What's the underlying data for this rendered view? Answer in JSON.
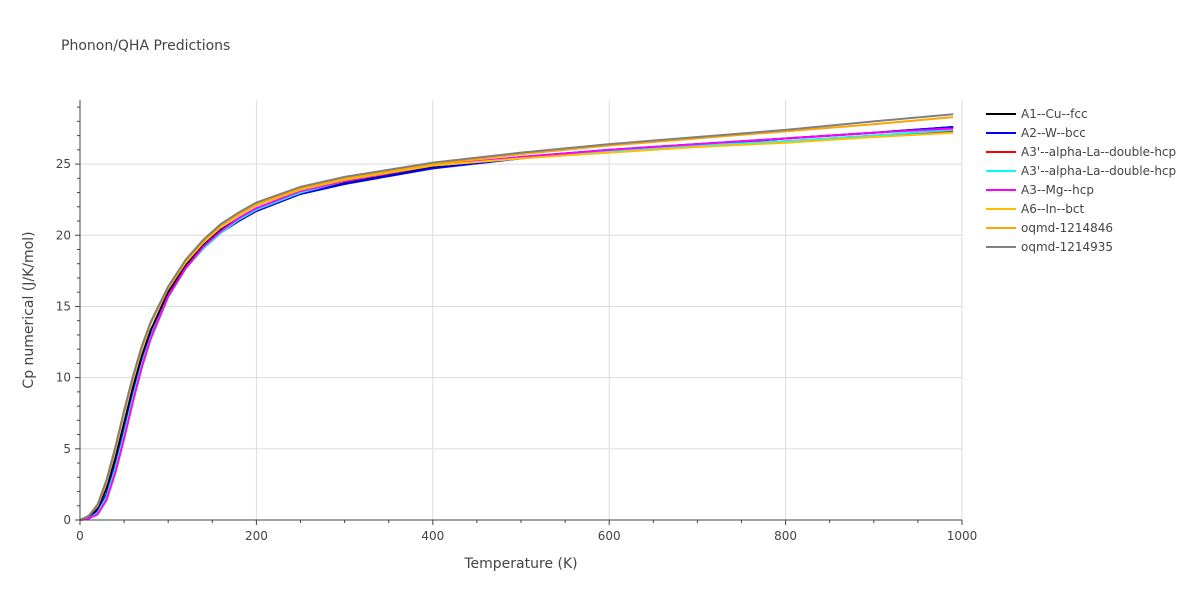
{
  "chart_data": {
    "type": "line",
    "title": "Phonon/QHA Predictions",
    "xlabel": "Temperature (K)",
    "ylabel": "Cp numerical (J/K/mol)",
    "xlim": [
      0,
      1000
    ],
    "ylim": [
      0,
      29.5
    ],
    "x_ticks": [
      0,
      200,
      400,
      600,
      800,
      1000
    ],
    "y_ticks": [
      0,
      5,
      10,
      15,
      20,
      25
    ],
    "grid": true,
    "legend_placement": "right",
    "series": [
      {
        "name": "A1--Cu--fcc",
        "color": "#000000",
        "x": [
          0,
          10,
          20,
          30,
          40,
          50,
          60,
          70,
          80,
          100,
          120,
          140,
          160,
          180,
          200,
          250,
          300,
          400,
          500,
          600,
          700,
          800,
          900,
          990
        ],
        "y": [
          0,
          0.2,
          0.8,
          2.2,
          4.3,
          6.8,
          9.3,
          11.5,
          13.3,
          16.0,
          17.9,
          19.3,
          20.4,
          21.2,
          21.9,
          23.0,
          23.7,
          24.8,
          25.5,
          26.0,
          26.4,
          26.8,
          27.2,
          27.6
        ]
      },
      {
        "name": "A2--W--bcc",
        "color": "#0000ff",
        "x": [
          0,
          10,
          20,
          30,
          40,
          50,
          60,
          70,
          80,
          100,
          120,
          140,
          160,
          180,
          200,
          250,
          300,
          400,
          500,
          600,
          700,
          800,
          900,
          990
        ],
        "y": [
          0,
          0.1,
          0.6,
          1.8,
          3.8,
          6.2,
          8.8,
          11.0,
          12.9,
          15.7,
          17.7,
          19.1,
          20.2,
          21.0,
          21.7,
          22.9,
          23.6,
          24.7,
          25.4,
          25.9,
          26.3,
          26.8,
          27.2,
          27.6
        ]
      },
      {
        "name": "A3'--alpha-La--double-hcp",
        "color": "#ff0000",
        "x": [
          0,
          10,
          20,
          30,
          40,
          50,
          60,
          70,
          80,
          100,
          120,
          140,
          160,
          180,
          200,
          250,
          300,
          400,
          500,
          600,
          700,
          800,
          900,
          990
        ],
        "y": [
          0,
          0.1,
          0.5,
          1.6,
          3.6,
          6.0,
          8.6,
          10.9,
          12.8,
          15.7,
          17.7,
          19.1,
          20.2,
          21.1,
          21.8,
          23.0,
          23.8,
          24.9,
          25.4,
          25.9,
          26.3,
          26.6,
          27.0,
          27.3
        ]
      },
      {
        "name": "A3'--alpha-La--double-hcp",
        "color": "#00ffff",
        "x": [
          0,
          10,
          20,
          30,
          40,
          50,
          60,
          70,
          80,
          100,
          120,
          140,
          160,
          180,
          200,
          250,
          300,
          400,
          500,
          600,
          700,
          800,
          900,
          990
        ],
        "y": [
          0,
          0.1,
          0.5,
          1.6,
          3.6,
          6.0,
          8.6,
          10.9,
          12.8,
          15.7,
          17.7,
          19.1,
          20.2,
          21.1,
          21.8,
          23.0,
          23.8,
          24.9,
          25.4,
          25.9,
          26.3,
          26.6,
          27.0,
          27.4
        ]
      },
      {
        "name": "A3--Mg--hcp",
        "color": "#ff00ff",
        "x": [
          0,
          10,
          20,
          30,
          40,
          50,
          60,
          70,
          80,
          100,
          120,
          140,
          160,
          180,
          200,
          250,
          300,
          400,
          500,
          600,
          700,
          800,
          900,
          990
        ],
        "y": [
          0,
          0.1,
          0.4,
          1.4,
          3.3,
          5.7,
          8.3,
          10.7,
          12.7,
          15.7,
          17.7,
          19.2,
          20.3,
          21.2,
          21.9,
          23.1,
          23.8,
          24.9,
          25.5,
          26.0,
          26.4,
          26.8,
          27.2,
          27.5
        ]
      },
      {
        "name": "A6--In--bct",
        "color": "#ffbf00",
        "x": [
          0,
          10,
          20,
          30,
          40,
          50,
          60,
          70,
          80,
          100,
          120,
          140,
          160,
          180,
          200,
          250,
          300,
          400,
          500,
          600,
          700,
          800,
          900,
          990
        ],
        "y": [
          0,
          0.3,
          1.1,
          2.7,
          5.0,
          7.6,
          10.0,
          12.1,
          13.8,
          16.3,
          18.1,
          19.5,
          20.6,
          21.4,
          22.1,
          23.2,
          23.9,
          24.9,
          25.4,
          25.8,
          26.2,
          26.5,
          26.9,
          27.2
        ]
      },
      {
        "name": "oqmd-1214846",
        "color": "#ffa500",
        "x": [
          0,
          10,
          20,
          30,
          40,
          50,
          60,
          70,
          80,
          100,
          120,
          140,
          160,
          180,
          200,
          250,
          300,
          400,
          500,
          600,
          700,
          800,
          900,
          990
        ],
        "y": [
          0,
          0.3,
          1.0,
          2.6,
          4.9,
          7.5,
          9.9,
          12.0,
          13.8,
          16.3,
          18.2,
          19.6,
          20.7,
          21.5,
          22.2,
          23.3,
          24.0,
          25.0,
          25.7,
          26.3,
          26.8,
          27.3,
          27.8,
          28.3
        ]
      },
      {
        "name": "oqmd-1214935",
        "color": "#808080",
        "x": [
          0,
          10,
          20,
          30,
          40,
          50,
          60,
          70,
          80,
          100,
          120,
          140,
          160,
          180,
          200,
          250,
          300,
          400,
          500,
          600,
          700,
          800,
          900,
          990
        ],
        "y": [
          0,
          0.3,
          1.1,
          2.8,
          5.1,
          7.7,
          10.1,
          12.2,
          13.9,
          16.4,
          18.3,
          19.7,
          20.8,
          21.6,
          22.3,
          23.4,
          24.1,
          25.1,
          25.8,
          26.4,
          26.9,
          27.4,
          28.0,
          28.5
        ]
      }
    ]
  }
}
